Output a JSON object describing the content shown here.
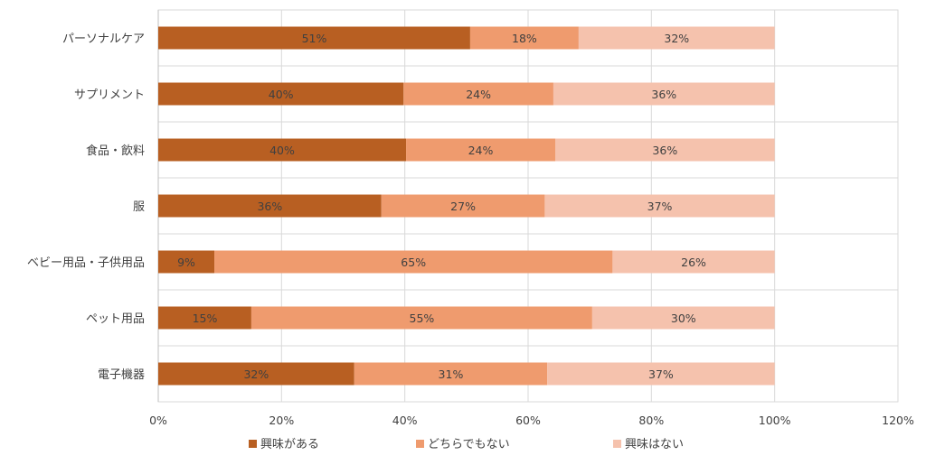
{
  "chart_data": {
    "type": "bar",
    "orientation": "horizontal",
    "stacked": true,
    "percent_format": true,
    "categories": [
      "パーソナルケア",
      "サプリメント",
      "食品・飲料",
      "服",
      "ベビー用品・子供用品",
      "ペット用品",
      "電子機器"
    ],
    "series": [
      {
        "name": "興味がある",
        "color": "#b85f22",
        "values": [
          0.506,
          0.398,
          0.402,
          0.362,
          0.091,
          0.151,
          0.318
        ],
        "labels": [
          "51%",
          "40%",
          "40%",
          "36%",
          "9%",
          "15%",
          "32%"
        ]
      },
      {
        "name": "どちらでもない",
        "color": "#ef9b6e",
        "values": [
          0.176,
          0.243,
          0.242,
          0.265,
          0.646,
          0.553,
          0.313
        ],
        "labels": [
          "18%",
          "24%",
          "24%",
          "27%",
          "65%",
          "55%",
          "31%"
        ]
      },
      {
        "name": "興味はない",
        "color": "#f5c2ad",
        "values": [
          0.318,
          0.359,
          0.356,
          0.373,
          0.263,
          0.296,
          0.369
        ],
        "labels": [
          "32%",
          "36%",
          "36%",
          "37%",
          "26%",
          "30%",
          "37%"
        ]
      }
    ],
    "x_ticks": [
      "0%",
      "20%",
      "40%",
      "60%",
      "80%",
      "100%",
      "120%"
    ],
    "xlim": [
      0,
      1.2
    ],
    "grid": true,
    "legend_position": "bottom",
    "title": "",
    "xlabel": "",
    "ylabel": ""
  }
}
